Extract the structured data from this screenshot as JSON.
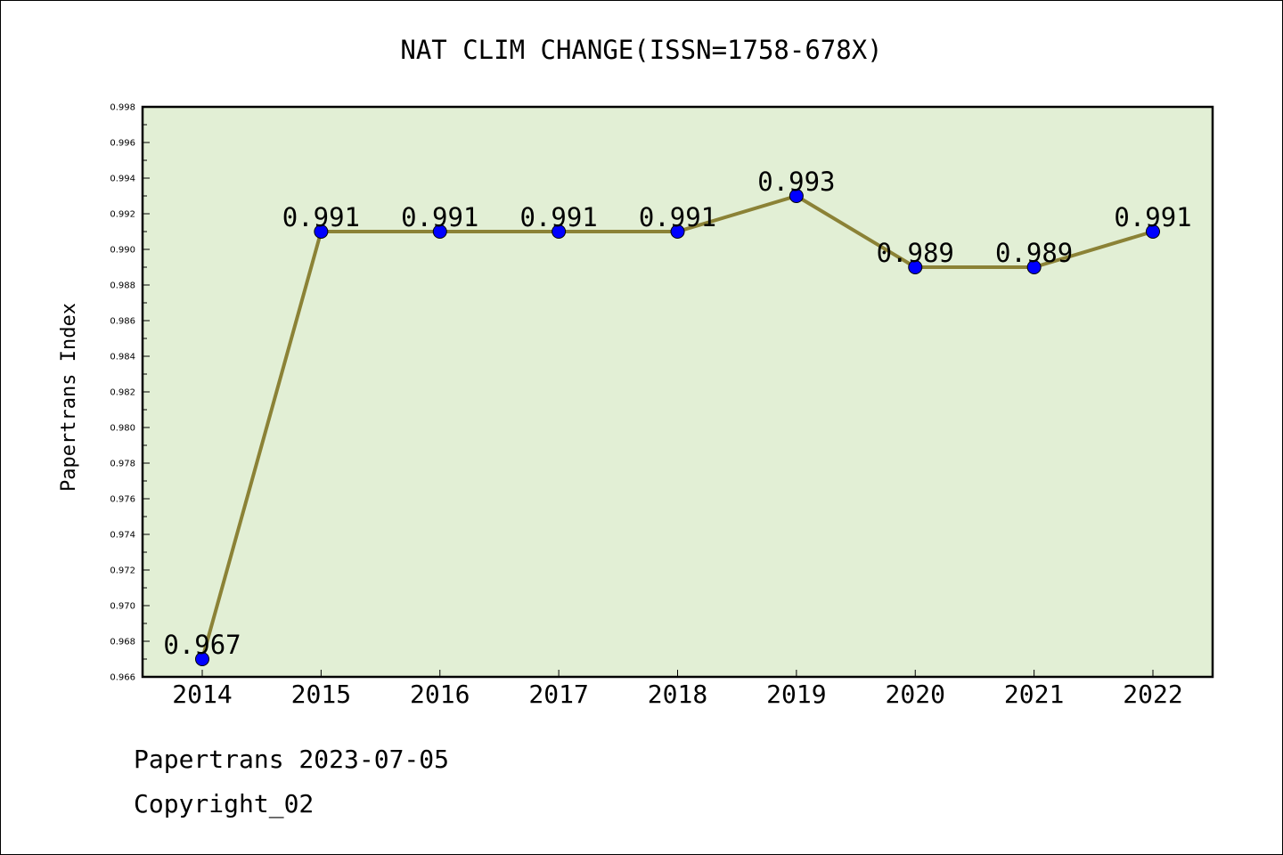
{
  "chart_data": {
    "type": "line",
    "title": "NAT CLIM CHANGE(ISSN=1758-678X)",
    "xlabel": "",
    "ylabel": "Papertrans Index",
    "categories": [
      "2014",
      "2015",
      "2016",
      "2017",
      "2018",
      "2019",
      "2020",
      "2021",
      "2022"
    ],
    "series": [
      {
        "values": [
          0.967,
          0.991,
          0.991,
          0.991,
          0.991,
          0.993,
          0.989,
          0.989,
          0.991
        ],
        "labels": [
          "0.967",
          "0.991",
          "0.991",
          "0.991",
          "0.991",
          "0.993",
          "0.989",
          "0.989",
          "0.991"
        ]
      }
    ],
    "ylim": [
      0.966,
      0.998
    ],
    "yticks": [
      "0.966",
      "0.968",
      "0.970",
      "0.972",
      "0.974",
      "0.976",
      "0.978",
      "0.980",
      "0.982",
      "0.984",
      "0.986",
      "0.988",
      "0.990",
      "0.992",
      "0.994",
      "0.996",
      "0.998"
    ],
    "grid": false,
    "legend": "none",
    "colors": {
      "plot_background": "#e2efd5",
      "line": "#8b8236",
      "marker": "#0000ff",
      "axes": "#000000"
    }
  },
  "footer": {
    "line1": "Papertrans 2023-07-05",
    "line2": "Copyright_02"
  }
}
